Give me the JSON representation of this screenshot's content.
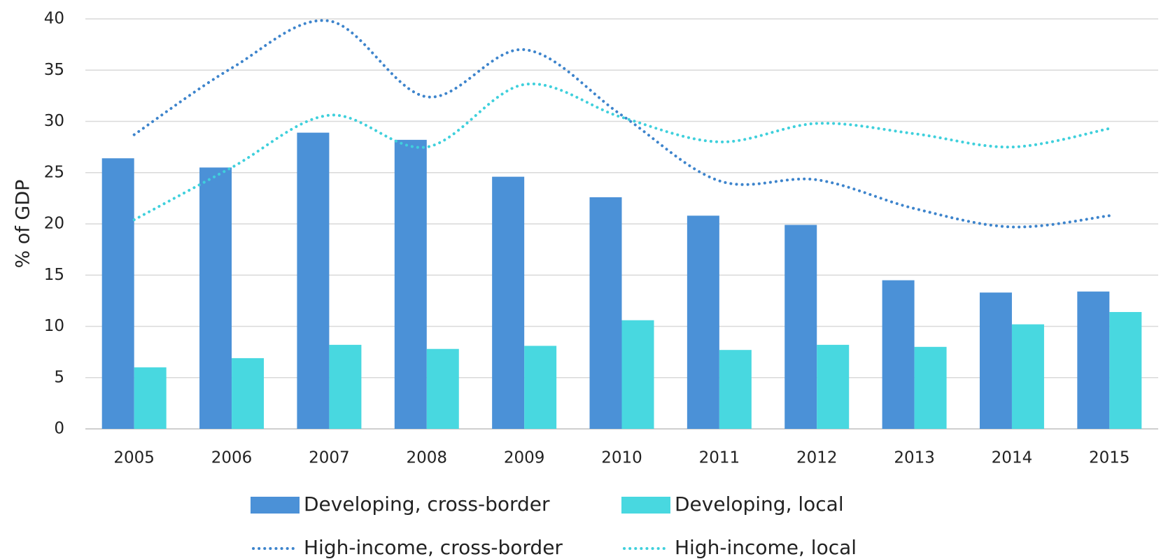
{
  "chart_data": {
    "type": "bar",
    "ylabel": "% of GDP",
    "categories": [
      "2005",
      "2006",
      "2007",
      "2008",
      "2009",
      "2010",
      "2011",
      "2012",
      "2013",
      "2014",
      "2015"
    ],
    "series": [
      {
        "name": "Developing, cross-border",
        "type": "bar",
        "color": "#4b91d7",
        "values": [
          26.4,
          25.5,
          28.9,
          28.2,
          24.6,
          22.6,
          20.8,
          19.9,
          14.5,
          13.3,
          13.4
        ]
      },
      {
        "name": "Developing, local",
        "type": "bar",
        "color": "#48d8e0",
        "values": [
          6.0,
          6.9,
          8.2,
          7.8,
          8.1,
          10.6,
          7.7,
          8.2,
          8.0,
          10.2,
          11.4
        ]
      },
      {
        "name": "High-income, cross-border",
        "type": "line",
        "line_style": "dotted",
        "smooth": true,
        "color": "#3d84cc",
        "values": [
          28.7,
          35.2,
          39.8,
          32.4,
          37.0,
          30.6,
          24.2,
          24.3,
          21.5,
          19.7,
          20.8
        ]
      },
      {
        "name": "High-income, local",
        "type": "line",
        "line_style": "dotted",
        "smooth": true,
        "color": "#3fd0dc",
        "values": [
          20.4,
          25.5,
          30.6,
          27.5,
          33.6,
          30.4,
          28.0,
          29.8,
          28.8,
          27.5,
          29.3
        ]
      }
    ],
    "ylim": [
      0,
      40
    ],
    "yticks": [
      0,
      5,
      10,
      15,
      20,
      25,
      30,
      35,
      40
    ],
    "grid": true,
    "legend": "bottom"
  }
}
